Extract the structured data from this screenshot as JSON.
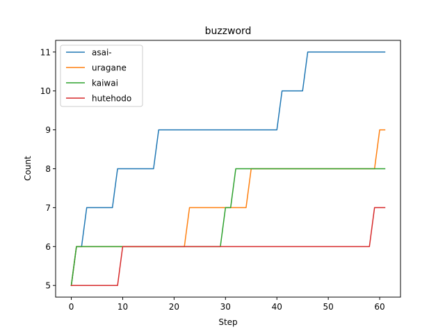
{
  "chart_data": {
    "type": "line",
    "title": "buzzword",
    "xlabel": "Step",
    "ylabel": "Count",
    "xlim": [
      -3.05,
      64.05
    ],
    "ylim": [
      4.7,
      11.3
    ],
    "xticks": [
      0,
      10,
      20,
      30,
      40,
      50,
      60
    ],
    "yticks": [
      5,
      6,
      7,
      8,
      9,
      10,
      11
    ],
    "grid": false,
    "legend_position": "top-left",
    "series": [
      {
        "name": "asai-",
        "color": "#1f77b4",
        "x": [
          0,
          1,
          2,
          3,
          8,
          9,
          16,
          17,
          40,
          41,
          45,
          46,
          61
        ],
        "y": [
          5,
          6,
          6,
          7,
          7,
          8,
          8,
          9,
          9,
          10,
          10,
          11,
          11
        ]
      },
      {
        "name": "uragane",
        "color": "#ff7f0e",
        "x": [
          0,
          1,
          22,
          23,
          34,
          35,
          59,
          60,
          61
        ],
        "y": [
          5,
          6,
          6,
          7,
          7,
          8,
          8,
          9,
          9
        ]
      },
      {
        "name": "kaiwai",
        "color": "#2ca02c",
        "x": [
          0,
          1,
          29,
          30,
          31,
          32,
          61
        ],
        "y": [
          5,
          6,
          6,
          7,
          7,
          8,
          8
        ]
      },
      {
        "name": "hutehodo",
        "color": "#d62728",
        "x": [
          0,
          9,
          10,
          58,
          59,
          61
        ],
        "y": [
          5,
          5,
          6,
          6,
          7,
          7
        ]
      }
    ]
  }
}
